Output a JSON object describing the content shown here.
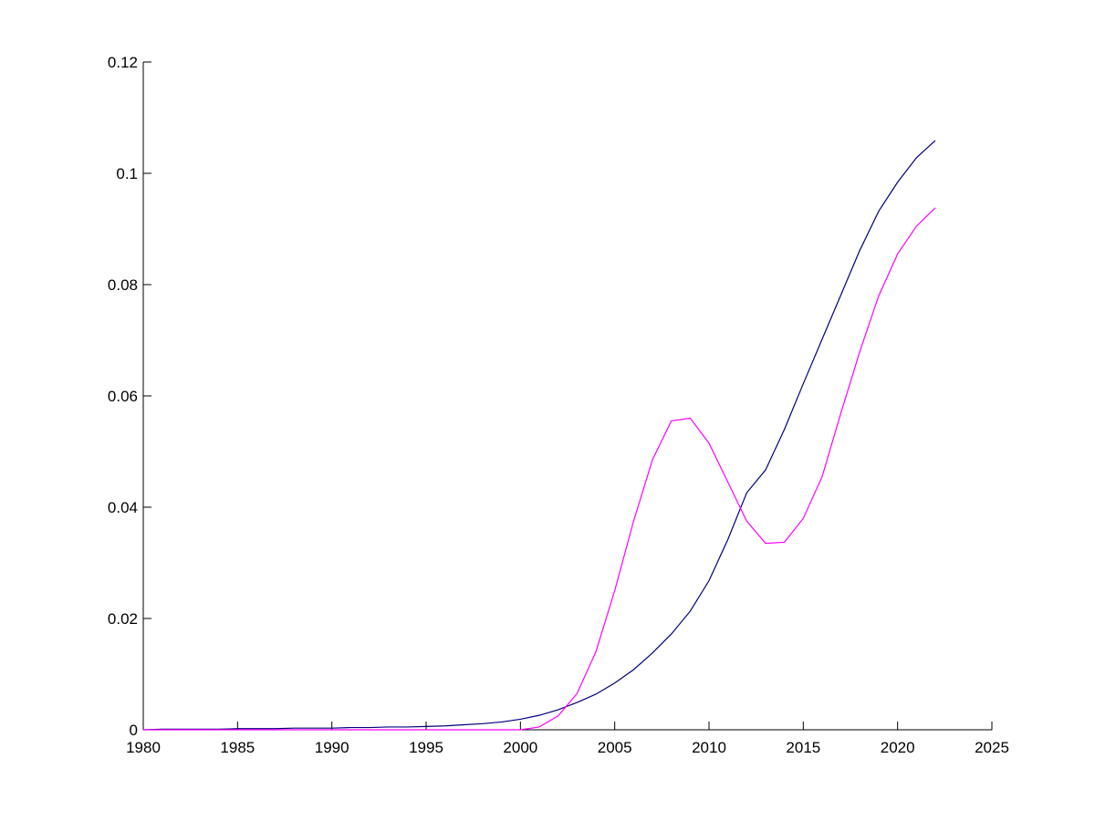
{
  "chart_data": {
    "type": "line",
    "x": [
      1980,
      1981,
      1982,
      1983,
      1984,
      1985,
      1986,
      1987,
      1988,
      1989,
      1990,
      1991,
      1992,
      1993,
      1994,
      1995,
      1996,
      1997,
      1998,
      1999,
      2000,
      2001,
      2002,
      2003,
      2004,
      2005,
      2006,
      2007,
      2008,
      2009,
      2010,
      2011,
      2012,
      2013,
      2014,
      2015,
      2016,
      2017,
      2018,
      2019,
      2020,
      2021,
      2022
    ],
    "series": [
      {
        "color": "#00007f",
        "values": [
          0,
          0.0001,
          0.0001,
          0.0001,
          0.0001,
          0.0002,
          0.0002,
          0.0002,
          0.0003,
          0.0003,
          0.0003,
          0.0004,
          0.0004,
          0.0005,
          0.0005,
          0.0006,
          0.0007,
          0.0009,
          0.0011,
          0.0014,
          0.0019,
          0.0026,
          0.0036,
          0.0049,
          0.0064,
          0.0084,
          0.0108,
          0.0138,
          0.0172,
          0.0213,
          0.0268,
          0.0342,
          0.0426,
          0.0467,
          0.054,
          0.0622,
          0.0702,
          0.0782,
          0.0862,
          0.0932,
          0.0984,
          0.1028,
          0.1059
        ]
      },
      {
        "color": "#ff00ff",
        "values": [
          0,
          0,
          0,
          0,
          0,
          0,
          0,
          0,
          0,
          0,
          0,
          0,
          0,
          0,
          0,
          0,
          0,
          0,
          0,
          0,
          0,
          0.0005,
          0.0025,
          0.0065,
          0.014,
          0.025,
          0.0375,
          0.0485,
          0.0555,
          0.056,
          0.0515,
          0.0445,
          0.0375,
          0.0335,
          0.0337,
          0.038,
          0.0455,
          0.057,
          0.068,
          0.078,
          0.0855,
          0.0905,
          0.0938
        ]
      }
    ],
    "xlim": [
      1980,
      2025
    ],
    "xticks": [
      1980,
      1985,
      1990,
      1995,
      2000,
      2005,
      2010,
      2015,
      2020,
      2025
    ],
    "ylim": [
      0,
      0.12
    ],
    "yticks": [
      0,
      0.02,
      0.04,
      0.06,
      0.08,
      0.1,
      0.12
    ]
  }
}
